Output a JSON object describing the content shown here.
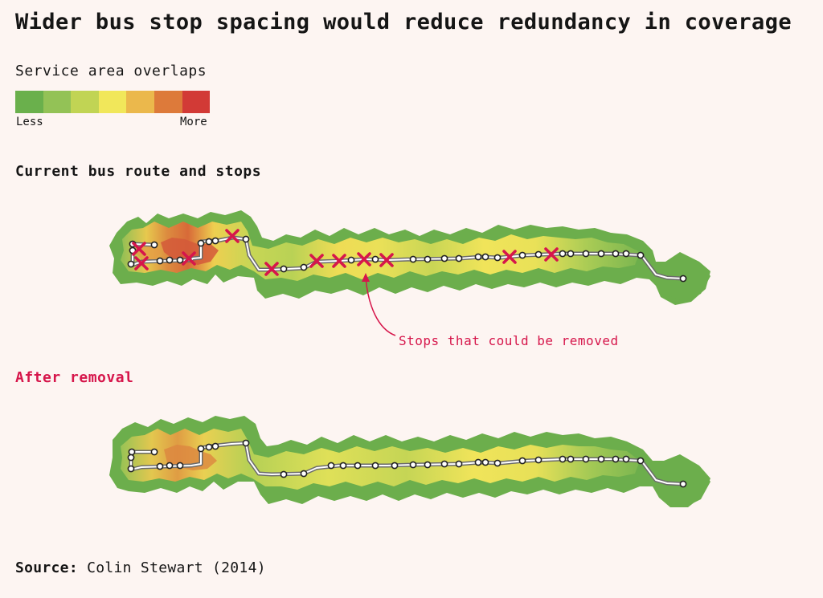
{
  "title": "Wider bus stop spacing would reduce redundancy in coverage",
  "legend": {
    "title": "Service area overlaps",
    "low_label": "Less",
    "high_label": "More",
    "colors": [
      "#6ab04c",
      "#93c256",
      "#c1d454",
      "#f1e75a",
      "#ebb84c",
      "#dd7a3a",
      "#d23a36"
    ]
  },
  "sections": {
    "current": "Current bus route and stops",
    "after": "After removal"
  },
  "annotation": "Stops that could be removed",
  "source": {
    "label": "Source:",
    "text": "Colin Stewart (2014)"
  },
  "colors": {
    "accent": "#d6164b",
    "route_line": "#777777",
    "stop_fill": "#ffffff"
  }
}
